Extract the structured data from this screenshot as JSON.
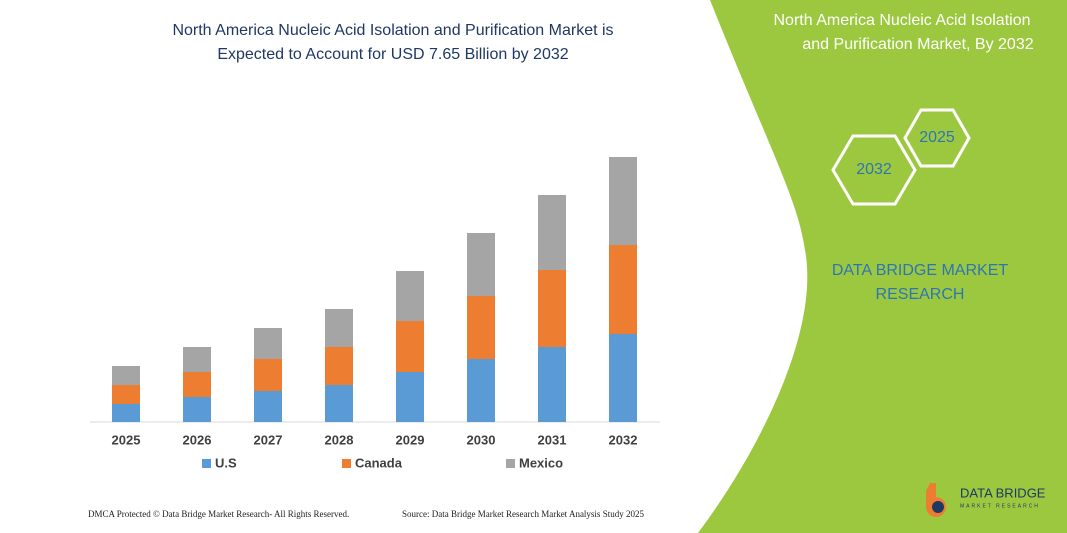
{
  "chart_data": {
    "type": "stacked_bar",
    "title": [
      "North America Nucleic Acid Isolation and Purification Market is",
      "Expected to Account for USD 7.65 Billion by 2032"
    ],
    "categories": [
      "2025",
      "2026",
      "2027",
      "2028",
      "2029",
      "2030",
      "2031",
      "2032"
    ],
    "series": [
      {
        "name": "U.S",
        "color": "#5b9bd5",
        "values": [
          18,
          25,
          31,
          37,
          50,
          63,
          75,
          88
        ]
      },
      {
        "name": "Canada",
        "color": "#ed7d31",
        "values": [
          19,
          25,
          32,
          38,
          51,
          63,
          77,
          89
        ]
      },
      {
        "name": "Mexico",
        "color": "#a5a5a5",
        "values": [
          19,
          25,
          31,
          38,
          50,
          63,
          75,
          88
        ]
      }
    ],
    "ylim": [
      0,
      280
    ],
    "grid": false
  },
  "side_panel": {
    "title": [
      "North America Nucleic Acid Isolation",
      "and Purification Market, By 2032"
    ],
    "hexagons": [
      "2025",
      "2032"
    ],
    "brand": [
      "DATA BRIDGE MARKET",
      "RESEARCH"
    ]
  },
  "logo": {
    "name": "DATA BRIDGE",
    "tagline": "MARKET RESEARCH"
  },
  "footer": {
    "copyright": "DMCA Protected © Data Bridge Market Research- All Rights Reserved.",
    "source": "Source: Data Bridge Market Research Market Analysis Study 2025"
  }
}
